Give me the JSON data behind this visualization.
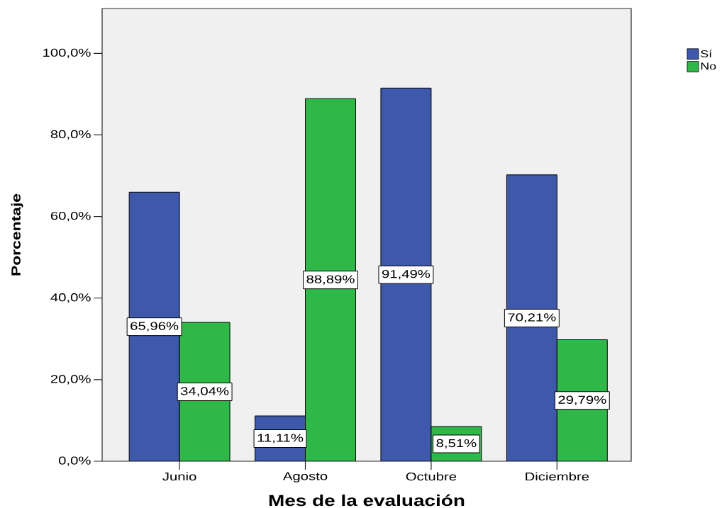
{
  "chart_data": {
    "type": "bar",
    "xlabel": "Mes de la evaluación",
    "ylabel": "Porcentaje",
    "categories": [
      "Junio",
      "Agosto",
      "Octubre",
      "Diciembre"
    ],
    "series": [
      {
        "name": "Sí",
        "color": "#3e58ac",
        "values": [
          65.96,
          11.11,
          91.49,
          70.21
        ],
        "value_labels": [
          "65,96%",
          "11,11%",
          "91,49%",
          "70,21%"
        ]
      },
      {
        "name": "No",
        "color": "#2eb848",
        "values": [
          34.04,
          88.89,
          8.51,
          29.79
        ],
        "value_labels": [
          "34,04%",
          "88,89%",
          "8,51%",
          "29,79%"
        ]
      }
    ],
    "ylim": [
      0,
      111
    ],
    "yticks": [
      {
        "value": 0,
        "label": "0,0%"
      },
      {
        "value": 20,
        "label": "20,0%"
      },
      {
        "value": 40,
        "label": "40,0%"
      },
      {
        "value": 60,
        "label": "60,0%"
      },
      {
        "value": 80,
        "label": "80,0%"
      },
      {
        "value": 100,
        "label": "100,0%"
      }
    ],
    "legend": "top right"
  }
}
